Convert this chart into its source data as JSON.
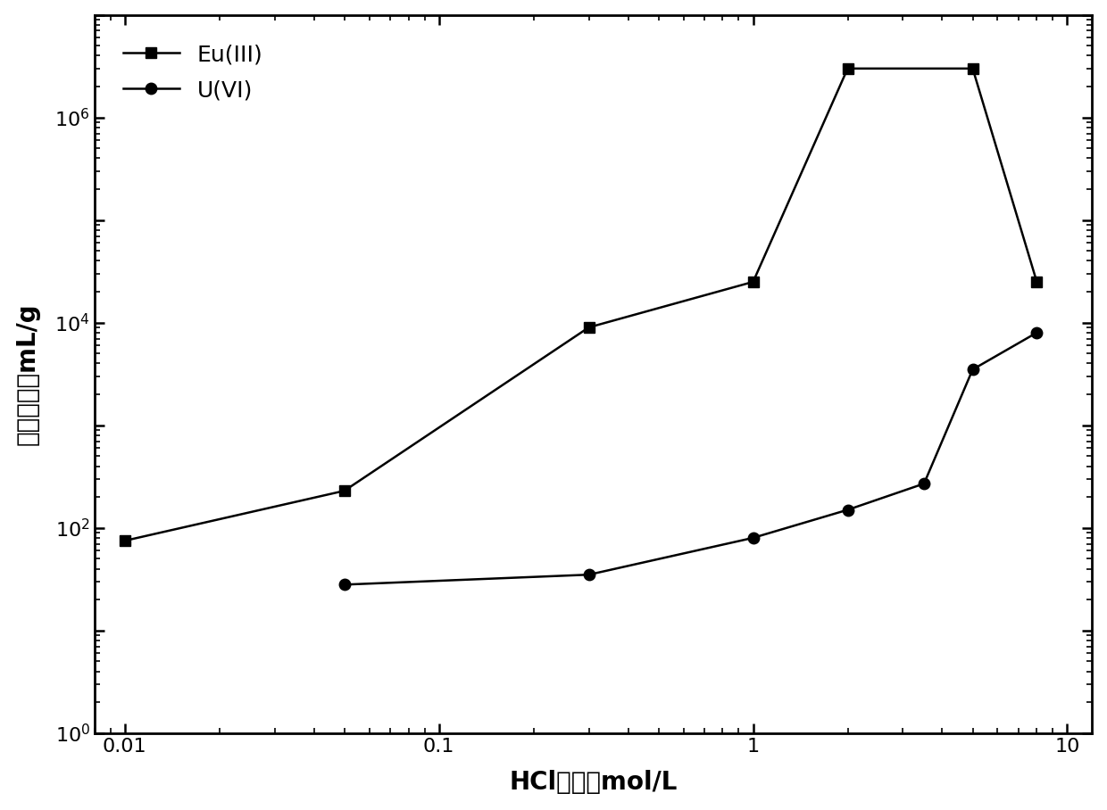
{
  "eu_x": [
    0.01,
    0.05,
    0.3,
    1.0,
    2.0,
    5.0,
    8.0
  ],
  "eu_y": [
    75,
    230,
    9000,
    25000,
    3000000,
    3000000,
    25000
  ],
  "u_x": [
    0.05,
    0.3,
    1.0,
    2.0,
    3.5,
    5.0,
    8.0
  ],
  "u_y": [
    28,
    35,
    80,
    150,
    270,
    3500,
    8000
  ],
  "eu_label": "Eu(III)",
  "u_label": "U(VI)",
  "xlabel": "HCl浓度，mol/L",
  "ylabel": "分配系数，mL/g",
  "xlim": [
    0.008,
    12
  ],
  "ylim": [
    1,
    10000000.0
  ],
  "line_color": "black",
  "marker_eu": "s",
  "marker_u": "o",
  "markersize": 9,
  "linewidth": 1.8,
  "legend_fontsize": 18,
  "axis_label_fontsize": 20,
  "tick_fontsize": 16,
  "figure_facecolor": "#ffffff"
}
